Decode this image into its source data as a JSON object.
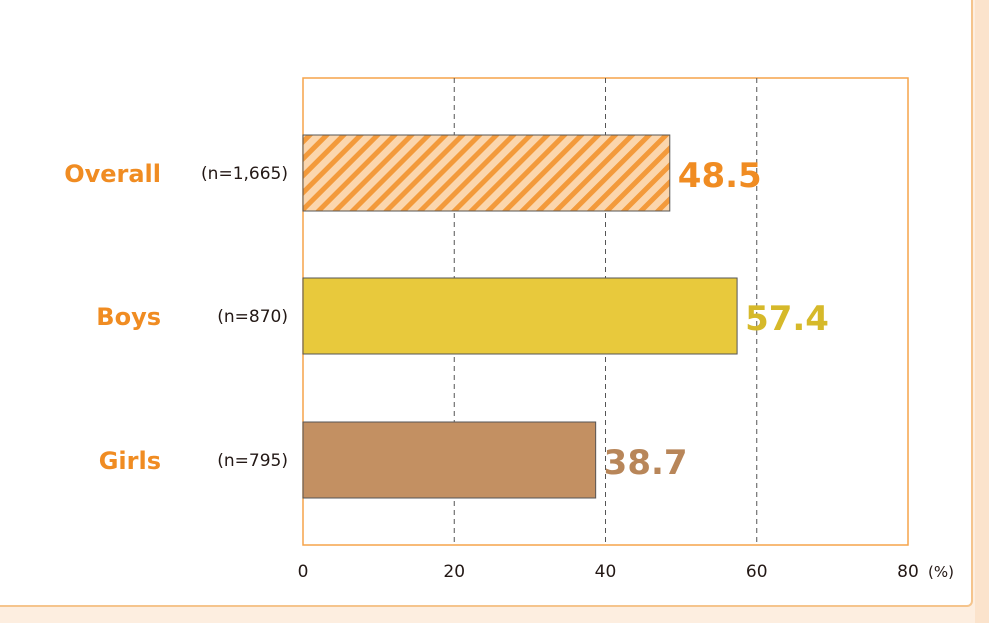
{
  "chart_data": {
    "type": "bar",
    "orientation": "horizontal",
    "categories": [
      "Overall",
      "Boys",
      "Girls"
    ],
    "sample_sizes": [
      "(n=1,665)",
      "(n=870)",
      "(n=795)"
    ],
    "values": [
      48.5,
      57.4,
      38.7
    ],
    "value_labels": [
      "48.5",
      "57.4",
      "38.7"
    ],
    "xlim": [
      0,
      80
    ],
    "x_ticks": [
      "0",
      "20",
      "40",
      "60",
      "80"
    ],
    "x_unit": "(%)",
    "grid": "vertical dashed",
    "bar_styles": [
      "hatched",
      "solid",
      "solid"
    ],
    "colors": {
      "overall_bar": "#f39a3b",
      "overall_hatch": "#fbd6ad",
      "boys_bar": "#e8c93c",
      "girls_bar": "#c39062",
      "category_label": "#f08c22",
      "overall_value": "#f08c22",
      "boys_value": "#d6b92a",
      "girls_value": "#b88659",
      "plot_border": "#f5a44a",
      "grid": "#555555"
    }
  }
}
